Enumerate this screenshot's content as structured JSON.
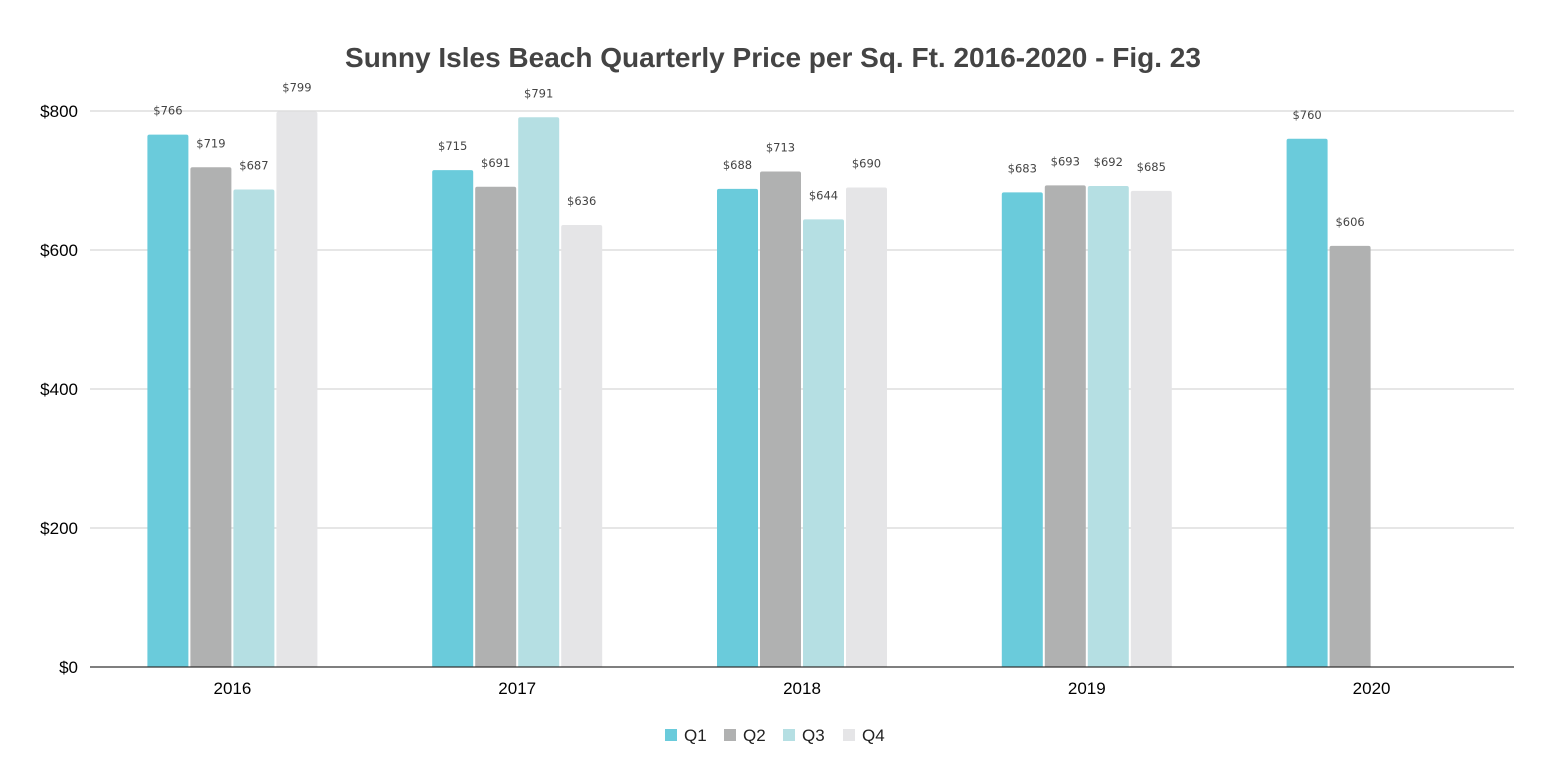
{
  "chart_data": {
    "type": "bar",
    "title": "Sunny Isles Beach Quarterly Price per Sq. Ft. 2016-2020 - Fig. 23",
    "xlabel": "",
    "ylabel": "",
    "categories": [
      "2016",
      "2017",
      "2018",
      "2019",
      "2020"
    ],
    "series": [
      {
        "name": "Q1",
        "color": "#6acbdb",
        "values": [
          766,
          715,
          688,
          683,
          760
        ]
      },
      {
        "name": "Q2",
        "color": "#b0b1b1",
        "values": [
          719,
          691,
          713,
          693,
          606
        ]
      },
      {
        "name": "Q3",
        "color": "#b5dfe3",
        "values": [
          687,
          791,
          644,
          692,
          null
        ]
      },
      {
        "name": "Q4",
        "color": "#e5e5e7",
        "values": [
          799,
          636,
          690,
          685,
          null
        ]
      }
    ],
    "ylim": [
      0,
      800
    ],
    "yticks": [
      0,
      200,
      400,
      600,
      800
    ],
    "ytick_labels": [
      "$0",
      "$200",
      "$400",
      "$600",
      "$800"
    ],
    "value_prefix": "$",
    "grid": true,
    "legend_position": "bottom-center",
    "data_labels": true
  }
}
